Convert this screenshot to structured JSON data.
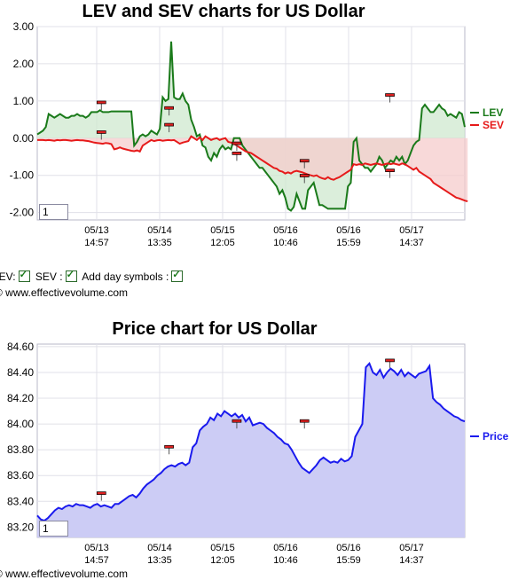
{
  "chart_data": [
    {
      "type": "line",
      "title": "LEV and SEV charts for US Dollar",
      "ylim": [
        -2.2,
        3.0
      ],
      "yticks": [
        "3.00",
        "2.00",
        "1.00",
        "0.00",
        "-1.00",
        "-2.00"
      ],
      "ytick_values": [
        3,
        2,
        1,
        0,
        -1,
        -2
      ],
      "xticks": [
        {
          "date": "05/13",
          "time": "14:57"
        },
        {
          "date": "05/14",
          "time": "13:35"
        },
        {
          "date": "05/15",
          "time": "12:05"
        },
        {
          "date": "05/16",
          "time": "10:46"
        },
        {
          "date": "05/16",
          "time": "15:59"
        },
        {
          "date": "05/17",
          "time": "14:37"
        }
      ],
      "series": [
        {
          "name": "LEV",
          "color": "#1a7a1a",
          "fill": "#cfe8cf",
          "values": [
            0.1,
            0.15,
            0.2,
            0.3,
            0.65,
            0.6,
            0.55,
            0.6,
            0.65,
            0.6,
            0.55,
            0.55,
            0.6,
            0.6,
            0.65,
            0.6,
            0.6,
            0.55,
            0.6,
            0.7,
            0.7,
            0.7,
            0.75,
            0.7,
            0.7,
            0.7,
            0.72,
            0.72,
            0.72,
            0.72,
            0.72,
            0.72,
            0.72,
            0.72,
            -0.2,
            -0.1,
            0.05,
            0.1,
            0.05,
            0.1,
            0.2,
            0.15,
            0.1,
            0.25,
            1.1,
            1.0,
            1.05,
            2.6,
            1.1,
            1.05,
            1.05,
            1.2,
            1.0,
            0.9,
            0.5,
            0.3,
            0.05,
            0.1,
            -0.2,
            -0.25,
            -0.5,
            -0.6,
            -0.4,
            -0.5,
            -0.3,
            -0.2,
            -0.3,
            -0.25,
            -0.3,
            0.0,
            0.0,
            0.0,
            -0.2,
            -0.3,
            -0.4,
            -0.5,
            -0.6,
            -0.7,
            -0.8,
            -0.8,
            -0.9,
            -1.0,
            -1.1,
            -1.2,
            -1.3,
            -1.5,
            -1.4,
            -1.6,
            -1.9,
            -1.95,
            -1.85,
            -1.5,
            -1.7,
            -1.9,
            -1.9,
            -1.4,
            -1.3,
            -1.2,
            -1.5,
            -1.8,
            -1.8,
            -1.85,
            -1.9,
            -1.9,
            -1.9,
            -1.9,
            -1.9,
            -1.9,
            -1.9,
            -1.3,
            -1.2,
            -0.1,
            0.0,
            -0.6,
            -0.7,
            -0.8,
            -0.8,
            -0.9,
            -0.8,
            -0.7,
            -0.5,
            -0.6,
            -0.8,
            -0.7,
            -0.6,
            -0.65,
            -0.5,
            -0.6,
            -0.5,
            -0.7,
            -0.6,
            -0.4,
            -0.2,
            -0.1,
            -0.05,
            0.8,
            0.9,
            0.8,
            0.7,
            0.7,
            0.8,
            0.9,
            0.8,
            0.75,
            0.6,
            0.65,
            0.6,
            0.55,
            0.7,
            0.65,
            0.3
          ]
        },
        {
          "name": "SEV",
          "color": "#e61a1a",
          "fill": "#f5cccc",
          "values": [
            -0.05,
            -0.05,
            -0.05,
            -0.06,
            -0.05,
            -0.06,
            -0.07,
            -0.05,
            -0.06,
            -0.05,
            -0.05,
            -0.06,
            -0.07,
            -0.06,
            -0.05,
            -0.06,
            -0.06,
            -0.07,
            -0.08,
            -0.1,
            -0.12,
            -0.13,
            -0.14,
            -0.15,
            -0.13,
            -0.14,
            -0.16,
            -0.3,
            -0.28,
            -0.25,
            -0.28,
            -0.3,
            -0.32,
            -0.34,
            -0.35,
            -0.33,
            -0.36,
            -0.2,
            -0.15,
            -0.1,
            -0.05,
            -0.08,
            -0.06,
            -0.05,
            -0.07,
            -0.06,
            -0.05,
            -0.06,
            -0.05,
            -0.1,
            -0.15,
            -0.12,
            -0.1,
            -0.08,
            0.05,
            0.0,
            -0.05,
            0.02,
            -0.05,
            0.05,
            0.0,
            -0.05,
            -0.02,
            0.0,
            -0.05,
            -0.02,
            0.0,
            -0.1,
            -0.12,
            -0.15,
            -0.2,
            -0.25,
            -0.3,
            -0.35,
            -0.38,
            -0.4,
            -0.45,
            -0.5,
            -0.55,
            -0.6,
            -0.65,
            -0.7,
            -0.75,
            -0.8,
            -0.82,
            -0.88,
            -0.9,
            -0.95,
            -0.92,
            -0.95,
            -0.9,
            -0.88,
            -0.9,
            -0.92,
            -0.95,
            -0.98,
            -1.0,
            -1.02,
            -1.0,
            -1.05,
            -1.08,
            -1.1,
            -1.05,
            -1.1,
            -1.12,
            -1.08,
            -1.05,
            -1.0,
            -0.95,
            -0.9,
            -0.85,
            -0.7,
            -0.72,
            -0.7,
            -0.72,
            -0.68,
            -0.7,
            -0.72,
            -0.7,
            -0.68,
            -0.7,
            -0.72,
            -0.7,
            -0.68,
            -0.7,
            -0.68,
            -0.7,
            -0.72,
            -0.68,
            -0.7,
            -0.75,
            -0.8,
            -0.85,
            -0.8,
            -0.9,
            -0.95,
            -1.0,
            -1.05,
            -1.1,
            -1.2,
            -1.25,
            -1.3,
            -1.35,
            -1.4,
            -1.45,
            -1.5,
            -1.55,
            -1.6,
            -1.62,
            -1.65,
            -1.68,
            -1.7
          ]
        }
      ],
      "day_symbols": [
        {
          "x": 36,
          "y": 0.95
        },
        {
          "x": 36,
          "y": 0.15
        },
        {
          "x": 74,
          "y": 0.8
        },
        {
          "x": 74,
          "y": 0.35
        },
        {
          "x": 112,
          "y": -0.15
        },
        {
          "x": 112,
          "y": -0.42
        },
        {
          "x": 150,
          "y": -0.62
        },
        {
          "x": 150,
          "y": -1.02
        },
        {
          "x": 188,
          "y": 1.15
        },
        {
          "x": 188,
          "y": -0.88
        }
      ],
      "input_value": "1"
    },
    {
      "type": "area",
      "title": "Price chart for US Dollar",
      "ylim": [
        83.12,
        84.62
      ],
      "yticks": [
        "84.60",
        "84.40",
        "84.20",
        "84.00",
        "83.80",
        "83.60",
        "83.40",
        "83.20"
      ],
      "ytick_values": [
        84.6,
        84.4,
        84.2,
        84.0,
        83.8,
        83.6,
        83.4,
        83.2
      ],
      "xticks": [
        {
          "date": "05/13",
          "time": "14:57"
        },
        {
          "date": "05/14",
          "time": "13:35"
        },
        {
          "date": "05/15",
          "time": "12:05"
        },
        {
          "date": "05/16",
          "time": "10:46"
        },
        {
          "date": "05/16",
          "time": "15:59"
        },
        {
          "date": "05/17",
          "time": "14:37"
        }
      ],
      "series": [
        {
          "name": "Price",
          "color": "#1a1aee",
          "fill": "#ccccf5",
          "values": [
            83.29,
            83.26,
            83.25,
            83.27,
            83.3,
            83.33,
            83.35,
            83.34,
            83.36,
            83.37,
            83.36,
            83.38,
            83.37,
            83.37,
            83.36,
            83.35,
            83.37,
            83.38,
            83.36,
            83.37,
            83.36,
            83.35,
            83.38,
            83.38,
            83.4,
            83.42,
            83.44,
            83.45,
            83.43,
            83.46,
            83.5,
            83.53,
            83.55,
            83.57,
            83.6,
            83.62,
            83.65,
            83.67,
            83.68,
            83.67,
            83.69,
            83.7,
            83.68,
            83.7,
            83.82,
            83.85,
            83.95,
            83.98,
            84.0,
            84.05,
            84.03,
            84.08,
            84.06,
            84.1,
            84.08,
            84.06,
            84.08,
            84.05,
            84.07,
            84.02,
            84.05,
            83.99,
            84.0,
            84.01,
            84.0,
            83.97,
            83.95,
            83.93,
            83.9,
            83.88,
            83.85,
            83.84,
            83.8,
            83.75,
            83.7,
            83.66,
            83.64,
            83.62,
            83.65,
            83.68,
            83.72,
            83.74,
            83.72,
            83.7,
            83.71,
            83.7,
            83.73,
            83.71,
            83.72,
            83.75,
            83.9,
            83.95,
            84.0,
            84.44,
            84.47,
            84.4,
            84.38,
            84.42,
            84.36,
            84.4,
            84.43,
            84.41,
            84.38,
            84.42,
            84.37,
            84.4,
            84.38,
            84.36,
            84.39,
            84.4,
            84.41,
            84.45,
            84.2,
            84.17,
            84.15,
            84.12,
            84.1,
            84.08,
            84.06,
            84.05,
            84.03,
            84.02
          ],
          "day_symbols": [
            {
              "x": 36,
              "y": 83.46
            },
            {
              "x": 74,
              "y": 83.82
            },
            {
              "x": 112,
              "y": 84.02
            },
            {
              "x": 150,
              "y": 84.02
            },
            {
              "x": 188,
              "y": 84.49
            }
          ]
        }
      ],
      "input_value": "1"
    }
  ],
  "options": {
    "lev_label": "LEV:",
    "sev_label": "SEV :",
    "day_symbols_label": "Add day symbols :"
  },
  "website": "© www.effectivevolume.com"
}
